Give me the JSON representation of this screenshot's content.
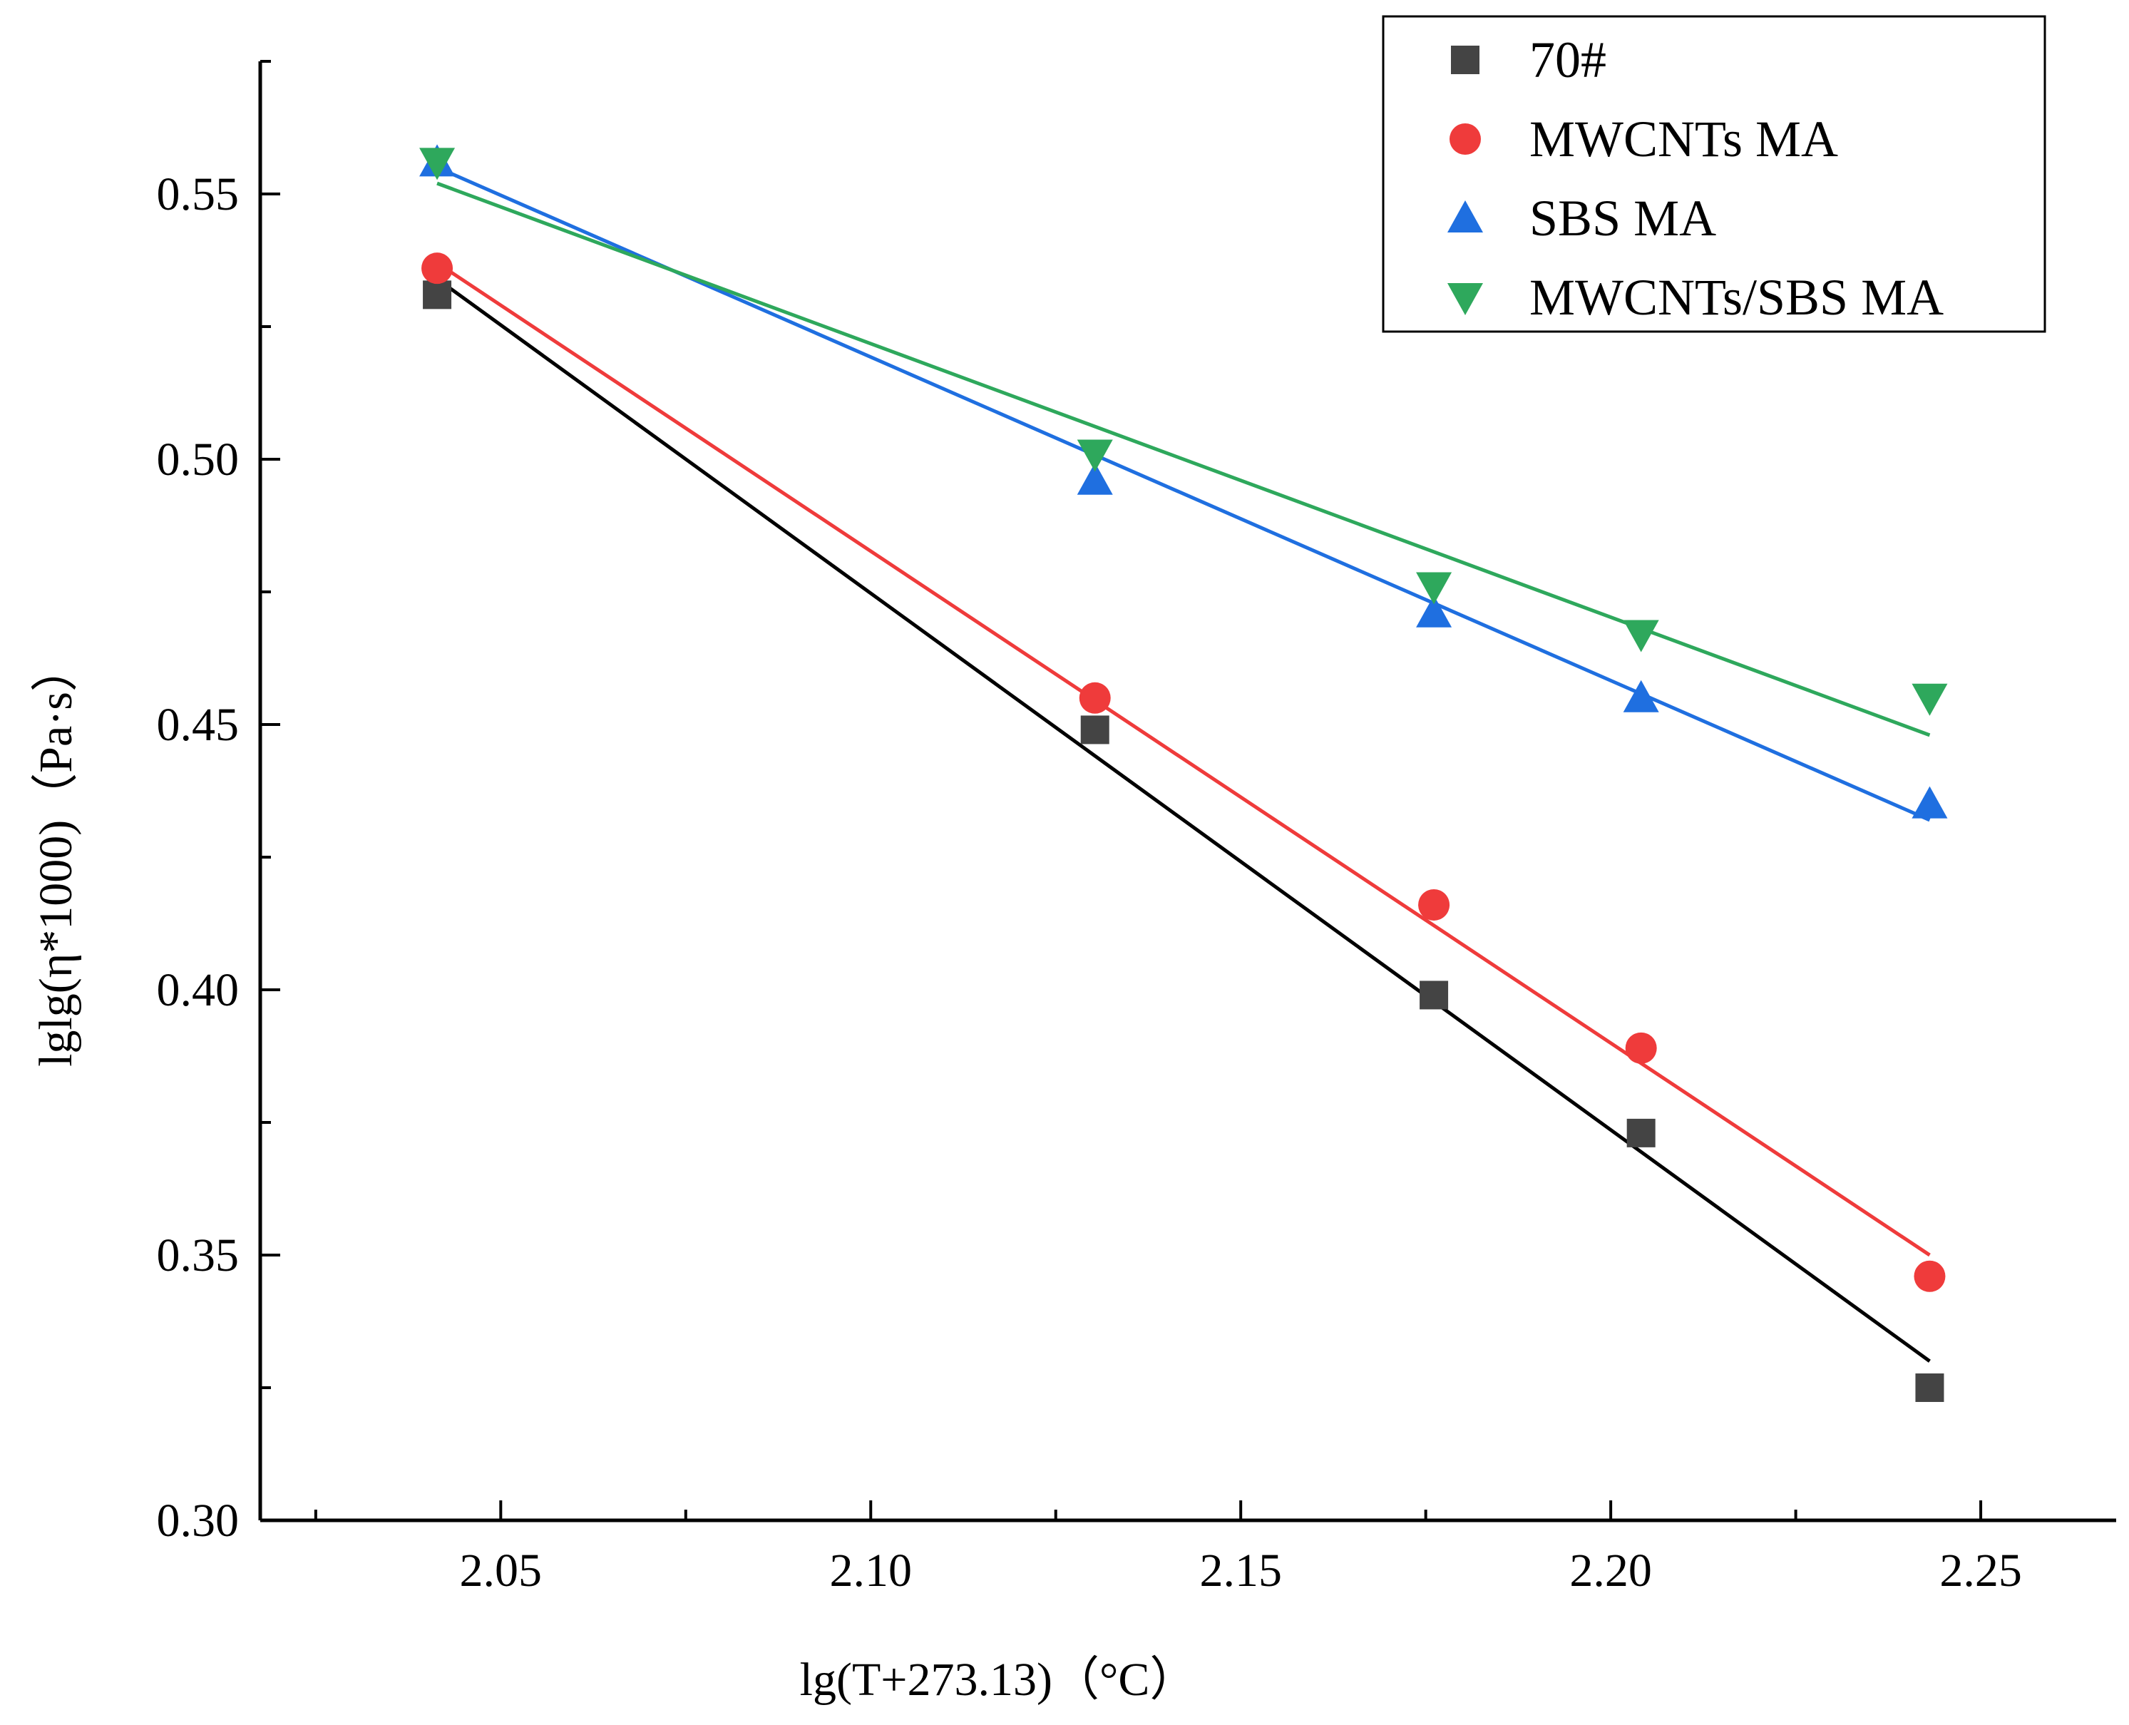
{
  "chart_data": {
    "type": "scatter",
    "title": "",
    "xlabel": "lg(T+273.13)（°C）",
    "ylabel": "lglg(η*1000)（Pa·s）",
    "xlim": [
      2.0175,
      2.2683
    ],
    "ylim": [
      0.3,
      0.575
    ],
    "x_ticks": [
      2.05,
      2.1,
      2.15,
      2.2,
      2.25
    ],
    "x_tick_labels": [
      "2.05",
      "2.10",
      "2.15",
      "2.20",
      "2.25"
    ],
    "y_ticks": [
      0.3,
      0.35,
      0.4,
      0.45,
      0.5,
      0.55
    ],
    "y_tick_labels": [
      "0.30",
      "0.35",
      "0.40",
      "0.45",
      "0.50",
      "0.55"
    ],
    "grid": false,
    "legend_position": "top-right",
    "series": [
      {
        "name": "70#",
        "marker": "square",
        "color": "#444444",
        "line_color": "#000000",
        "x": [
          2.0414,
          2.1303,
          2.1761,
          2.2041,
          2.2431
        ],
        "y": [
          0.531,
          0.449,
          0.399,
          0.373,
          0.325
        ],
        "fit": {
          "x": [
            2.0414,
            2.2431
          ],
          "y": [
            0.534,
            0.33
          ]
        }
      },
      {
        "name": "MWCNTs MA",
        "marker": "circle",
        "color": "#ef3b3b",
        "line_color": "#ef3b3b",
        "x": [
          2.0414,
          2.1303,
          2.1761,
          2.2041,
          2.2431
        ],
        "y": [
          0.536,
          0.455,
          0.416,
          0.389,
          0.346
        ],
        "fit": {
          "x": [
            2.0414,
            2.2431
          ],
          "y": [
            0.537,
            0.35
          ]
        }
      },
      {
        "name": "SBS MA",
        "marker": "triangle-up",
        "color": "#1f6fe0",
        "line_color": "#1f6fe0",
        "x": [
          2.0414,
          2.1303,
          2.1761,
          2.2041,
          2.2431
        ],
        "y": [
          0.556,
          0.496,
          0.471,
          0.455,
          0.435
        ],
        "fit": {
          "x": [
            2.0414,
            2.2431
          ],
          "y": [
            0.555,
            0.432
          ]
        }
      },
      {
        "name": "MWCNTs/SBS MA",
        "marker": "triangle-down",
        "color": "#2ea85c",
        "line_color": "#2ea85c",
        "x": [
          2.0414,
          2.1303,
          2.1761,
          2.2041,
          2.2431
        ],
        "y": [
          0.556,
          0.501,
          0.476,
          0.467,
          0.455
        ],
        "fit": {
          "x": [
            2.0414,
            2.2431
          ],
          "y": [
            0.552,
            0.448
          ]
        }
      }
    ]
  }
}
